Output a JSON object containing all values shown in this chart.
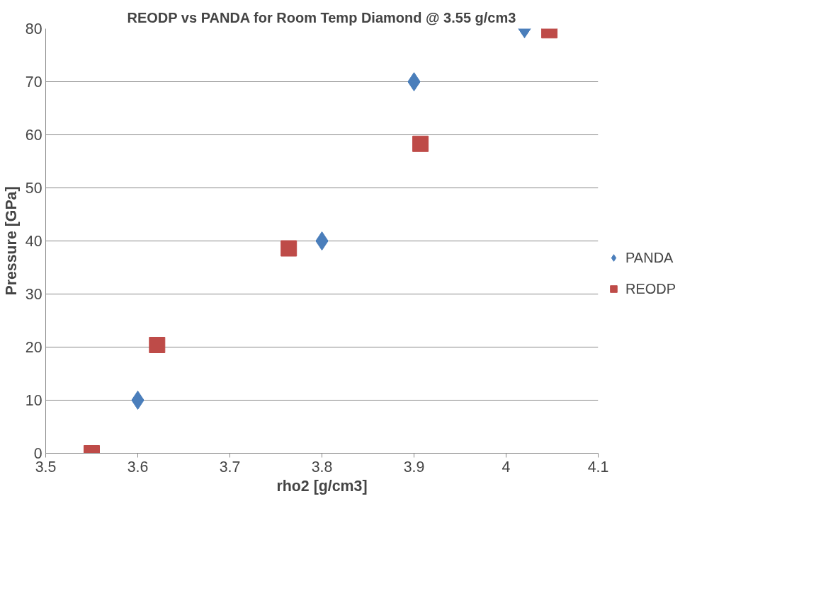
{
  "chart_data": {
    "type": "scatter",
    "title": "REODP vs PANDA for Room Temp Diamond @ 3.55 g/cm3",
    "xlabel": "rho2 [g/cm3]",
    "ylabel": "Pressure [GPa]",
    "xlim": [
      3.5,
      4.1
    ],
    "xticks": [
      3.5,
      3.6,
      3.7,
      3.8,
      3.9,
      {
        "value": 4.0,
        "label": "4"
      },
      4.1
    ],
    "ylim": [
      0,
      80
    ],
    "yticks": [
      0,
      10,
      20,
      30,
      40,
      50,
      60,
      70,
      80
    ],
    "grid": "y",
    "legend": "right",
    "series": [
      {
        "name": "PANDA",
        "color": "#4a7ebb",
        "marker": "diamond",
        "x": [
          3.6,
          3.8,
          3.9,
          4.02
        ],
        "values": [
          10,
          40,
          70,
          80
        ]
      },
      {
        "name": "REODP",
        "color": "#be4b48",
        "marker": "square",
        "x": [
          3.55,
          3.621,
          3.764,
          3.907,
          4.047
        ],
        "values": [
          0,
          20.4,
          38.6,
          58.3,
          79.7
        ]
      }
    ]
  }
}
